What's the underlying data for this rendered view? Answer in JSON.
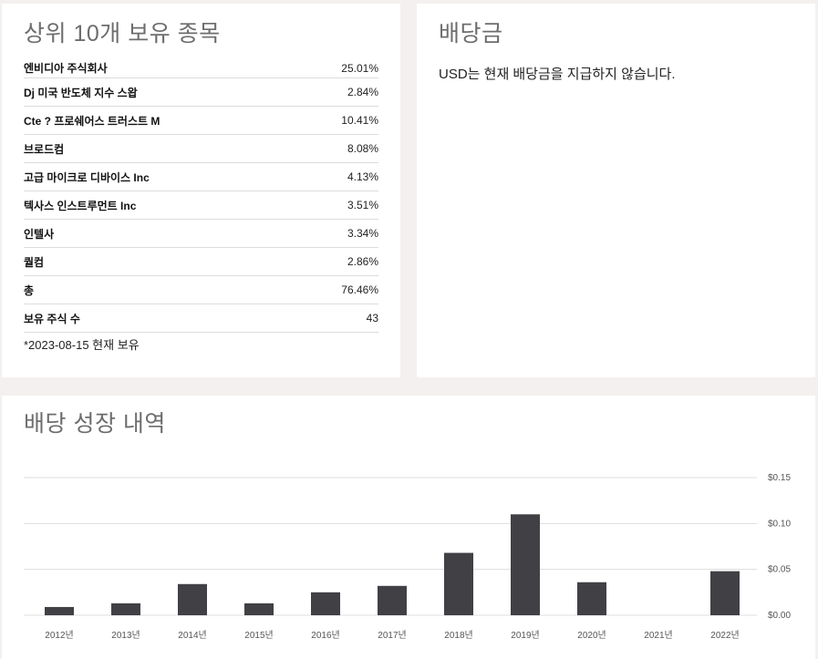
{
  "holdings": {
    "title": "상위 10개 보유 종목",
    "rows": [
      {
        "name": "엔비디아 주식회사",
        "value": "25.01%"
      },
      {
        "name": "Dj 미국 반도체 지수 스왑",
        "value": "2.84%"
      },
      {
        "name": "Cte ? 프로쉐어스 트러스트 M",
        "value": "10.41%"
      },
      {
        "name": "브로드컴",
        "value": "8.08%"
      },
      {
        "name": "고급 마이크로 디바이스 Inc",
        "value": "4.13%"
      },
      {
        "name": "텍사스 인스트루먼트 Inc",
        "value": "3.51%"
      },
      {
        "name": "인텔사",
        "value": "3.34%"
      },
      {
        "name": "퀄컴",
        "value": "2.86%"
      },
      {
        "name": "총",
        "value": "76.46%"
      },
      {
        "name": "보유 주식 수",
        "value": "43"
      }
    ],
    "note": "*2023-08-15 현재 보유"
  },
  "dividend": {
    "title": "배당금",
    "text": "USD는 현재 배당금을 지급하지 않습니다."
  },
  "growth": {
    "title": "배당 성장 내역"
  },
  "chart_data": {
    "type": "bar",
    "title": "배당 성장 내역",
    "categories": [
      "2012년",
      "2013년",
      "2014년",
      "2015년",
      "2016년",
      "2017년",
      "2018년",
      "2019년",
      "2020년",
      "2021년",
      "2022년"
    ],
    "values": [
      0.009,
      0.013,
      0.034,
      0.013,
      0.025,
      0.032,
      0.068,
      0.11,
      0.036,
      0,
      0.048
    ],
    "y_ticks": [
      "$0.00",
      "$0.05",
      "$0.10",
      "$0.15"
    ],
    "ylim": [
      0,
      0.15
    ],
    "y_axis_position": "right",
    "grid": true,
    "bar_color": "#414044"
  }
}
